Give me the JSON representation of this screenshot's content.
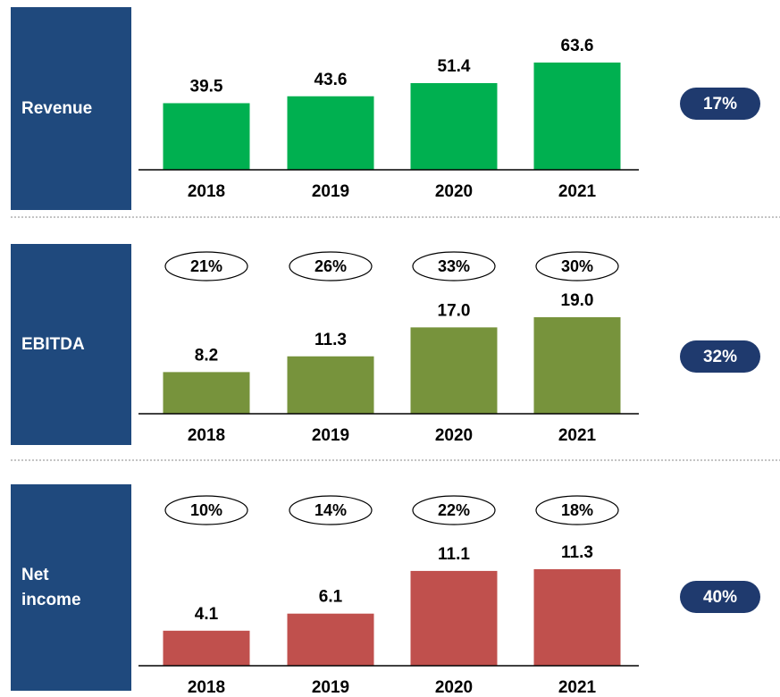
{
  "chart_data": [
    {
      "type": "bar",
      "title": "Revenue",
      "categories": [
        "2018",
        "2019",
        "2020",
        "2021"
      ],
      "values": [
        39.5,
        43.6,
        51.4,
        63.6
      ],
      "color": "#00b050",
      "cagr": {
        "value": 17,
        "label": "17%"
      }
    },
    {
      "type": "bar",
      "title": "EBITDA",
      "categories": [
        "2018",
        "2019",
        "2020",
        "2021"
      ],
      "values": [
        8.2,
        11.3,
        17.0,
        19.0
      ],
      "value_labels": [
        "8.2",
        "11.3",
        "17.0",
        "19.0"
      ],
      "color": "#77933c",
      "margins": [
        {
          "value": 21,
          "label": "21%"
        },
        {
          "value": 26,
          "label": "26%"
        },
        {
          "value": 33,
          "label": "33%"
        },
        {
          "value": 30,
          "label": "30%"
        }
      ],
      "cagr": {
        "value": 32,
        "label": "32%"
      }
    },
    {
      "type": "bar",
      "title": "Net income",
      "categories": [
        "2018",
        "2019",
        "2020",
        "2021"
      ],
      "values": [
        4.1,
        6.1,
        11.1,
        11.3
      ],
      "color": "#c0504d",
      "margins": [
        {
          "value": 10,
          "label": "10%"
        },
        {
          "value": 14,
          "label": "14%"
        },
        {
          "value": 22,
          "label": "22%"
        },
        {
          "value": 18,
          "label": "18%"
        }
      ],
      "cagr": {
        "value": 40,
        "label": "40%"
      }
    }
  ]
}
